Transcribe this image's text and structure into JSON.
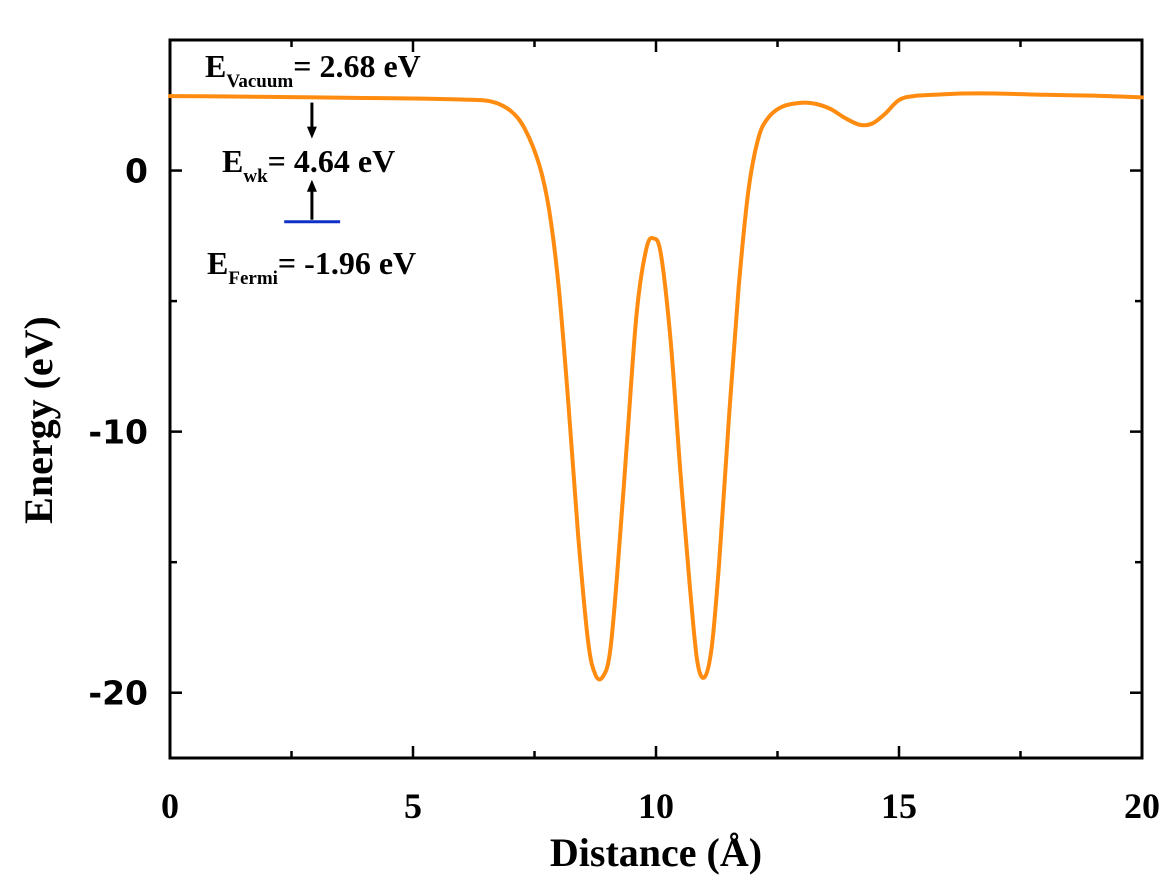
{
  "chart_data": {
    "type": "line",
    "xlabel": "Distance (Å)",
    "ylabel": "Energy (eV)",
    "xlim": [
      0,
      20
    ],
    "ylim": [
      -22.5,
      5
    ],
    "x_ticks": [
      0,
      5,
      10,
      15,
      20
    ],
    "x_tick_labels": [
      "0",
      "5",
      "10",
      "15",
      "20"
    ],
    "y_ticks": [
      0,
      -10,
      -20
    ],
    "y_tick_labels": [
      "0",
      "-10",
      "-20"
    ],
    "grid": false,
    "colors": {
      "curve": "#FF8C10",
      "fermi_line": "#1030C8",
      "arrow": "#000000"
    },
    "series": [
      {
        "x": [
          0,
          1,
          2,
          3,
          4,
          5,
          6,
          6.6,
          7.0,
          7.3,
          7.6,
          7.8,
          8.0,
          8.2,
          8.4,
          8.6,
          8.75,
          8.9,
          9.05,
          9.2,
          9.4,
          9.6,
          9.8,
          9.95,
          10.1,
          10.3,
          10.5,
          10.7,
          10.85,
          11.0,
          11.15,
          11.3,
          11.5,
          11.7,
          11.9,
          12.1,
          12.3,
          12.6,
          13.0,
          13.3,
          13.6,
          13.9,
          14.2,
          14.45,
          14.7,
          15.0,
          15.3,
          15.7,
          16.3,
          17,
          18,
          19,
          20
        ],
        "y": [
          2.85,
          2.84,
          2.82,
          2.8,
          2.78,
          2.76,
          2.72,
          2.65,
          2.3,
          1.6,
          0.2,
          -1.5,
          -4.5,
          -9.0,
          -14.0,
          -18.0,
          -19.3,
          -19.4,
          -18.5,
          -15.5,
          -10.5,
          -5.5,
          -3.0,
          -2.6,
          -3.2,
          -6.5,
          -11.5,
          -16.0,
          -18.8,
          -19.4,
          -18.2,
          -15.0,
          -9.5,
          -4.5,
          -0.8,
          1.2,
          2.0,
          2.45,
          2.6,
          2.55,
          2.35,
          2.0,
          1.75,
          1.8,
          2.15,
          2.7,
          2.85,
          2.9,
          2.95,
          2.95,
          2.9,
          2.87,
          2.8
        ]
      }
    ],
    "annotations": {
      "vacuum": {
        "main": "E",
        "sub": "Vacuum",
        "rest": "= 2.68 eV",
        "value": 2.68
      },
      "work": {
        "main": "E",
        "sub": "wk",
        "rest": "= 4.64 eV",
        "value": 4.64
      },
      "fermi": {
        "main": "E",
        "sub": "Fermi",
        "rest": "= -1.96 eV",
        "value": -1.96
      }
    }
  }
}
